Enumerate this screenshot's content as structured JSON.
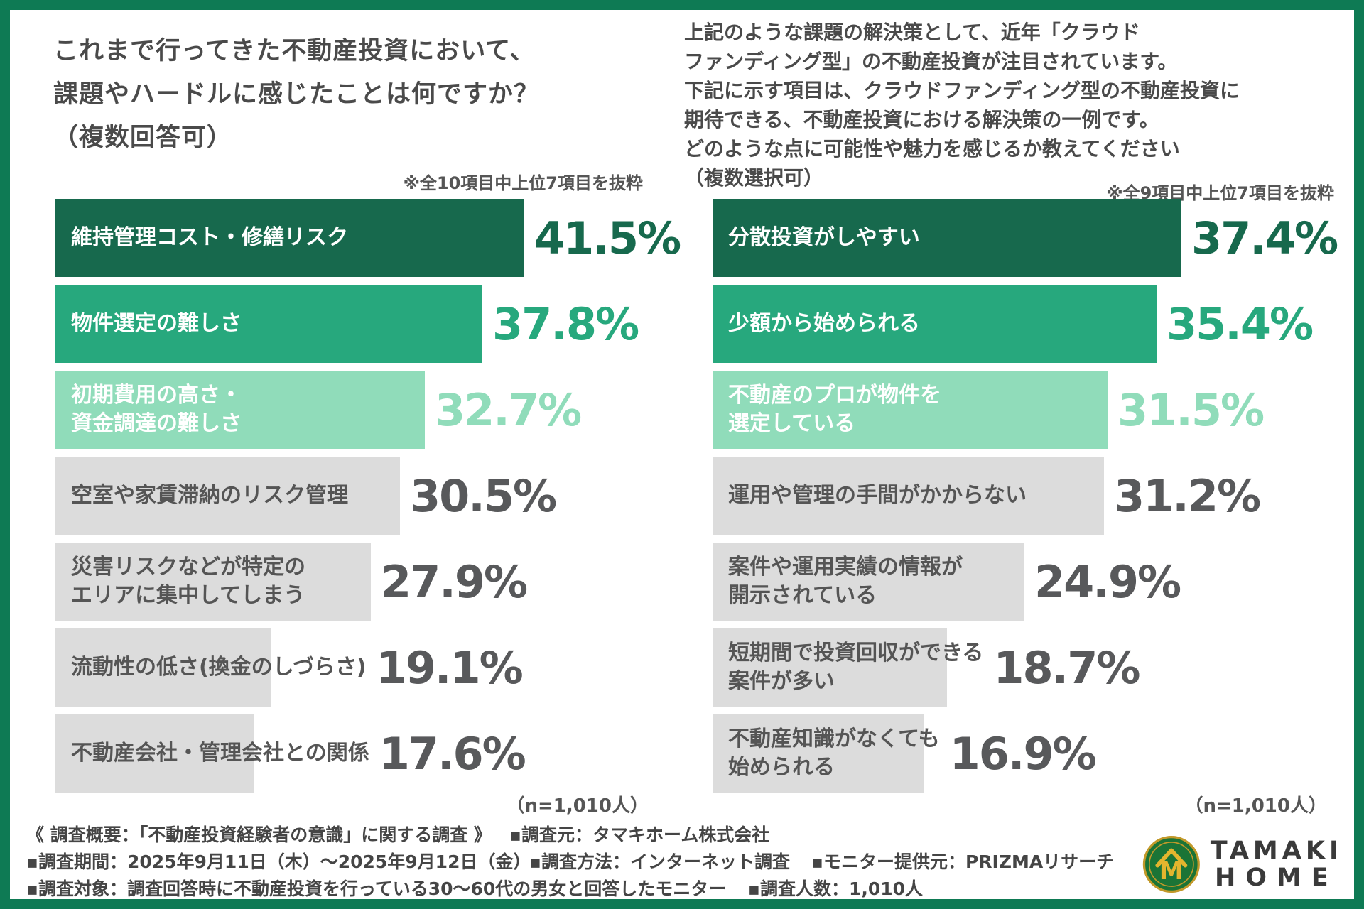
{
  "chart_data": [
    {
      "type": "bar",
      "orientation": "horizontal",
      "title": "これまで行ってきた不動産投資において、\n課題やハードルに感じたことは何ですか？\n（複数回答可）",
      "note": "※全10項目中上位7項目を抜粋",
      "n_label": "（n=1,010人）",
      "categories": [
        "維持管理コスト・修繕リスク",
        "物件選定の難しさ",
        "初期費用の高さ・\n資金調達の難しさ",
        "空室や家賃滞納のリスク管理",
        "災害リスクなどが特定の\nエリアに集中してしまう",
        "流動性の低さ(換金のしづらさ)",
        "不動産会社・管理会社との関係"
      ],
      "values": [
        41.5,
        37.8,
        32.7,
        30.5,
        27.9,
        19.1,
        17.6
      ],
      "value_labels": [
        "41.5%",
        "37.8%",
        "32.7%",
        "30.5%",
        "27.9%",
        "19.1%",
        "17.6%"
      ],
      "bar_colors": [
        "#17694D",
        "#27A87D",
        "#90DCBA",
        "#DCDCDC",
        "#DCDCDC",
        "#DCDCDC",
        "#DCDCDC"
      ],
      "value_colors": [
        "#17694D",
        "#27A87D",
        "#90DCBA",
        "#58595B",
        "#58595B",
        "#58595B",
        "#58595B"
      ],
      "label_colors": [
        "#FFFFFF",
        "#FFFFFF",
        "#FFFFFF",
        "#555555",
        "#555555",
        "#555555",
        "#555555"
      ],
      "xlim": [
        0,
        41.5
      ],
      "grid": false,
      "legend": false
    },
    {
      "type": "bar",
      "orientation": "horizontal",
      "title": "上記のような課題の解決策として、近年「クラウド\nファンディング型」の不動産投資が注目されています。\n下記に示す項目は、クラウドファンディング型の不動産投資に\n期待できる、不動産投資における解決策の一例です。\nどのような点に可能性や魅力を感じるか教えてください\n（複数選択可）",
      "note": "※全9項目中上位7項目を抜粋",
      "n_label": "（n=1,010人）",
      "categories": [
        "分散投資がしやすい",
        "少額から始められる",
        "不動産のプロが物件を\n選定している",
        "運用や管理の手間がかからない",
        "案件や運用実績の情報が\n開示されている",
        "短期間で投資回収ができる\n案件が多い",
        "不動産知識がなくても\n始められる"
      ],
      "values": [
        37.4,
        35.4,
        31.5,
        31.2,
        24.9,
        18.7,
        16.9
      ],
      "value_labels": [
        "37.4%",
        "35.4%",
        "31.5%",
        "31.2%",
        "24.9%",
        "18.7%",
        "16.9%"
      ],
      "bar_colors": [
        "#17694D",
        "#27A87D",
        "#90DCBA",
        "#DCDCDC",
        "#DCDCDC",
        "#DCDCDC",
        "#DCDCDC"
      ],
      "value_colors": [
        "#17694D",
        "#27A87D",
        "#90DCBA",
        "#58595B",
        "#58595B",
        "#58595B",
        "#58595B"
      ],
      "label_colors": [
        "#FFFFFF",
        "#FFFFFF",
        "#FFFFFF",
        "#555555",
        "#555555",
        "#555555",
        "#555555"
      ],
      "xlim": [
        0,
        37.4
      ],
      "grid": false,
      "legend": false
    }
  ],
  "footer": {
    "line1": [
      "《 調査概要：「不動産投資経験者の意識」に関する調査 》",
      "▪調査元：タマキホーム株式会社"
    ],
    "line2": [
      "▪調査期間：2025年9月11日（木）〜2025年9月12日（金）",
      "▪調査方法：インターネット調査",
      "▪モニター提供元：PRIZMAリサーチ"
    ],
    "line3": [
      "▪調査対象：調査回答時に不動産投資を行っている30〜60代の男女と回答したモニター",
      "▪調査人数：1,010人"
    ]
  },
  "logo": {
    "name_top": "TAMAKI",
    "name_bottom": "HOME"
  },
  "colors": {
    "frame": "#0E7A54",
    "rank1": "#17694D",
    "rank2": "#27A87D",
    "rank3": "#90DCBA",
    "other": "#DCDCDC"
  }
}
